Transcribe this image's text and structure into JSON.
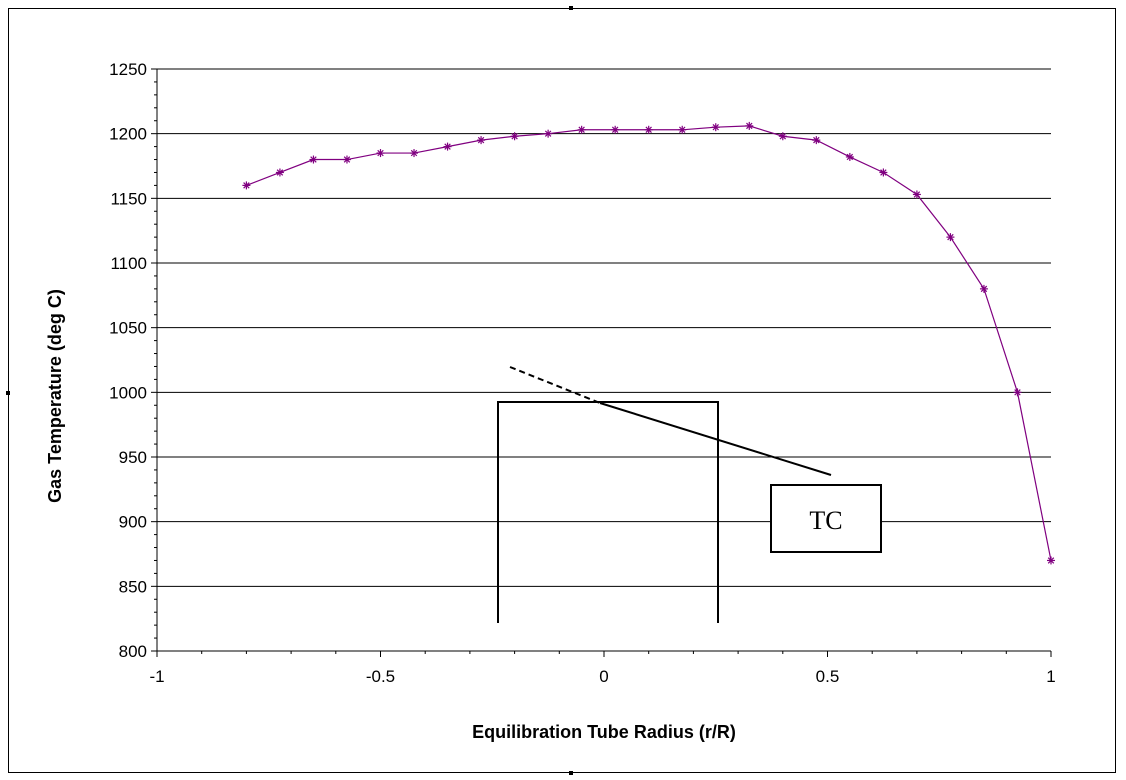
{
  "chart_data": {
    "type": "line",
    "xlabel": "Equilibration Tube Radius (r/R)",
    "ylabel": "Gas Temperature (deg C)",
    "xlim": [
      -1,
      1
    ],
    "ylim": [
      800,
      1250
    ],
    "x_ticks": [
      -1,
      -0.5,
      0,
      0.5,
      1
    ],
    "x_tick_labels": [
      "-1",
      "-0.5",
      "0",
      "0.5",
      "1"
    ],
    "y_ticks": [
      800,
      850,
      900,
      950,
      1000,
      1050,
      1100,
      1150,
      1200,
      1250
    ],
    "y_tick_labels": [
      "800",
      "850",
      "900",
      "950",
      "1000",
      "1050",
      "1100",
      "1150",
      "1200",
      "1250"
    ],
    "grid": "horizontal",
    "legend": "none",
    "series": [
      {
        "color": "#800080",
        "marker": "asterisk",
        "x": [
          -0.8,
          -0.725,
          -0.65,
          -0.575,
          -0.5,
          -0.425,
          -0.35,
          -0.275,
          -0.2,
          -0.125,
          -0.05,
          0.025,
          0.1,
          0.175,
          0.25,
          0.325,
          0.4,
          0.475,
          0.55,
          0.625,
          0.7,
          0.775,
          0.85,
          0.925,
          1.0
        ],
        "y": [
          1160,
          1170,
          1180,
          1180,
          1185,
          1185,
          1190,
          1195,
          1198,
          1200,
          1203,
          1203,
          1203,
          1203,
          1205,
          1206,
          1198,
          1195,
          1182,
          1170,
          1153,
          1120,
          1080,
          1000,
          870
        ]
      }
    ],
    "annotations": {
      "tc_label": "TC"
    }
  }
}
